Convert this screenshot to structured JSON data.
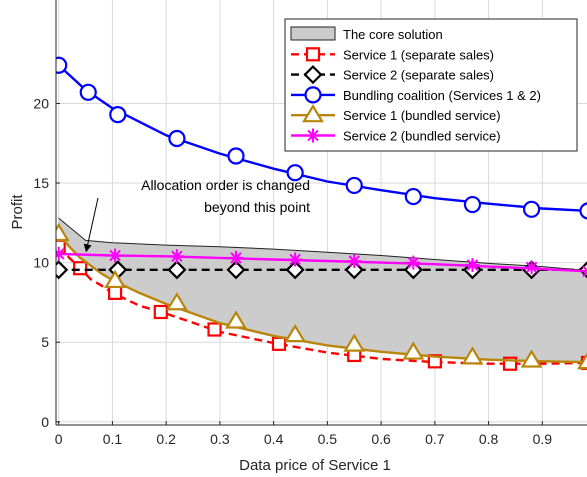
{
  "chart_data": {
    "type": "line",
    "xlabel": "Data price of Service 1",
    "ylabel": "Profit",
    "xlim": [
      -0.005,
      0.985
    ],
    "ylim": [
      -0.2,
      26.5
    ],
    "x_ticks": [
      0,
      0.1,
      0.2,
      0.3,
      0.4,
      0.5,
      0.6,
      0.7,
      0.8,
      0.9
    ],
    "x_tick_labels": [
      "0",
      "0.1",
      "0.2",
      "0.3",
      "0.4",
      "0.5",
      "0.6",
      "0.7",
      "0.8",
      "0.9"
    ],
    "y_ticks": [
      0,
      5,
      10,
      15,
      20
    ],
    "y_tick_labels": [
      "0",
      "5",
      "10",
      "15",
      "20"
    ],
    "grid": true,
    "legend_position": "top-right",
    "core_region": {
      "name": "The core solution",
      "color": "#cccccc",
      "upper": {
        "x": [
          0,
          0.05,
          0.1,
          0.2,
          0.3,
          0.4,
          0.5,
          0.6,
          0.7,
          0.8,
          0.9,
          0.985
        ],
        "y": [
          12.8,
          11.4,
          11.25,
          11.1,
          11.0,
          10.85,
          10.65,
          10.45,
          10.2,
          9.95,
          9.75,
          9.5
        ]
      },
      "lower": {
        "x": [
          0,
          0.02,
          0.04,
          0.06,
          0.08,
          0.1,
          0.15,
          0.2,
          0.3,
          0.4,
          0.5,
          0.6,
          0.7,
          0.8,
          0.9,
          0.985
        ],
        "y": [
          11.8,
          11.0,
          10.3,
          9.8,
          9.3,
          8.9,
          8.1,
          7.4,
          6.2,
          5.4,
          4.8,
          4.4,
          4.1,
          3.9,
          3.8,
          3.75
        ]
      }
    },
    "series": [
      {
        "name": "Service 1 (separate sales)",
        "color": "#ff0000",
        "dash": "8,5",
        "marker": "square",
        "x": [
          0,
          0.02,
          0.04,
          0.06,
          0.08,
          0.1,
          0.15,
          0.2,
          0.3,
          0.4,
          0.5,
          0.6,
          0.7,
          0.8,
          0.9,
          0.985
        ],
        "y": [
          11.0,
          10.3,
          9.65,
          8.95,
          8.55,
          8.1,
          7.3,
          6.8,
          5.65,
          4.95,
          4.35,
          3.95,
          3.75,
          3.65,
          3.65,
          3.7
        ],
        "marker_x": [
          0,
          0.04,
          0.105,
          0.19,
          0.29,
          0.41,
          0.55,
          0.7,
          0.84,
          0.985
        ],
        "marker_y": [
          11.0,
          9.65,
          8.1,
          6.9,
          5.8,
          4.9,
          4.2,
          3.8,
          3.65,
          3.7
        ]
      },
      {
        "name": "Service 2 (separate sales)",
        "color": "#000000",
        "dash": "8,5",
        "marker": "diamond",
        "x": [
          0,
          0.985
        ],
        "y": [
          9.55,
          9.55
        ],
        "marker_x": [
          0,
          0.11,
          0.22,
          0.33,
          0.44,
          0.55,
          0.66,
          0.77,
          0.88,
          0.985
        ],
        "marker_y": [
          9.55,
          9.55,
          9.55,
          9.55,
          9.55,
          9.55,
          9.55,
          9.55,
          9.55,
          9.55
        ]
      },
      {
        "name": "Bundling coalition (Services 1 & 2)",
        "color": "#0000ff",
        "dash": "",
        "marker": "circle",
        "x": [
          0,
          0.05,
          0.1,
          0.2,
          0.3,
          0.4,
          0.5,
          0.6,
          0.7,
          0.8,
          0.9,
          0.985
        ],
        "y": [
          22.4,
          20.85,
          19.7,
          18.0,
          16.85,
          15.9,
          15.1,
          14.55,
          14.05,
          13.7,
          13.4,
          13.25
        ],
        "marker_x": [
          0,
          0.055,
          0.11,
          0.22,
          0.33,
          0.44,
          0.55,
          0.66,
          0.77,
          0.88,
          0.985
        ],
        "marker_y": [
          22.4,
          20.7,
          19.3,
          17.8,
          16.7,
          15.65,
          14.85,
          14.15,
          13.65,
          13.35,
          13.25
        ]
      },
      {
        "name": "Service 1 (bundled service)",
        "color": "#b8860b",
        "dash": "",
        "marker": "triangle",
        "x": [
          0,
          0.02,
          0.04,
          0.06,
          0.08,
          0.1,
          0.15,
          0.2,
          0.3,
          0.4,
          0.5,
          0.6,
          0.7,
          0.8,
          0.9,
          0.985
        ],
        "y": [
          11.8,
          11.0,
          10.3,
          9.8,
          9.3,
          8.9,
          8.1,
          7.4,
          6.2,
          5.4,
          4.8,
          4.4,
          4.1,
          3.9,
          3.8,
          3.75
        ],
        "marker_x": [
          0,
          0.105,
          0.22,
          0.33,
          0.44,
          0.55,
          0.66,
          0.77,
          0.88,
          0.985
        ],
        "marker_y": [
          11.8,
          8.85,
          7.45,
          6.3,
          5.45,
          4.85,
          4.35,
          4.05,
          3.85,
          3.75
        ]
      },
      {
        "name": "Service 2 (bundled service)",
        "color": "#ff00ff",
        "dash": "",
        "marker": "asterisk",
        "x": [
          0,
          0.1,
          0.2,
          0.3,
          0.4,
          0.5,
          0.6,
          0.7,
          0.8,
          0.9,
          0.985
        ],
        "y": [
          10.55,
          10.45,
          10.4,
          10.3,
          10.2,
          10.1,
          10.0,
          9.9,
          9.75,
          9.6,
          9.45
        ],
        "marker_x": [
          0,
          0.105,
          0.22,
          0.33,
          0.44,
          0.55,
          0.66,
          0.77,
          0.88,
          0.985
        ],
        "marker_y": [
          10.55,
          10.45,
          10.4,
          10.3,
          10.2,
          10.1,
          10.0,
          9.85,
          9.7,
          9.45
        ]
      }
    ],
    "annotation": {
      "lines": [
        "Allocation order is changed",
        "beyond this point"
      ],
      "target_x": 0.04,
      "target_y": 10.4
    }
  }
}
